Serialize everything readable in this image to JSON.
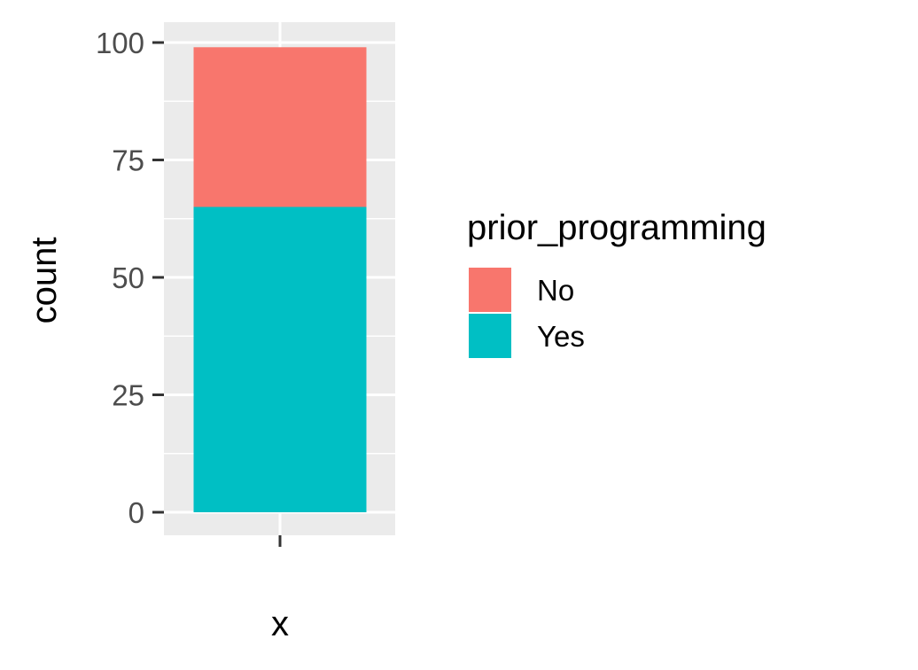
{
  "chart_data": {
    "type": "bar",
    "stacked": true,
    "categories": [
      ""
    ],
    "series": [
      {
        "name": "No",
        "values": [
          34
        ],
        "color": "#f8766d"
      },
      {
        "name": "Yes",
        "values": [
          65
        ],
        "color": "#00bfc4"
      }
    ],
    "title": "",
    "xlabel": "x",
    "ylabel": "count",
    "ylim": [
      0,
      100
    ],
    "yticks": [
      0,
      25,
      50,
      75,
      100
    ],
    "ytick_labels": [
      "0",
      "25",
      "50",
      "75",
      "100"
    ],
    "grid": true,
    "panel_color": "#ebebeb",
    "legend": {
      "title": "prior_programming",
      "position": "right",
      "entries": [
        "No",
        "Yes"
      ]
    }
  }
}
